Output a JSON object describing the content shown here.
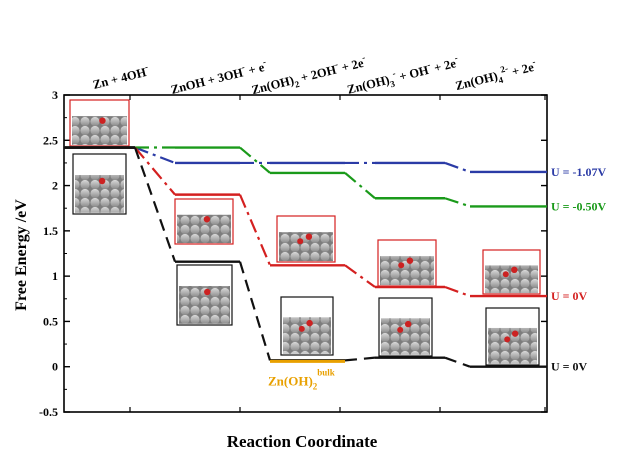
{
  "chart_data": {
    "type": "line",
    "title": "",
    "xlabel": "Reaction Coordinate",
    "ylabel": "Free Energy /eV",
    "ylim": [
      -0.5,
      3
    ],
    "yticks": [
      "-0.5",
      "0",
      "0.5",
      "1",
      "1.5",
      "2",
      "2.5",
      "3"
    ],
    "ytick_values": [
      -0.5,
      0,
      0.5,
      1,
      1.5,
      2,
      2.5,
      3
    ],
    "grid": false,
    "x_states": [
      {
        "base": "Zn + 4OH",
        "sup": "-",
        "sub": ""
      },
      {
        "base": "ZnOH + 3OH",
        "sup": "-",
        "sub": "",
        "tail": " + e",
        "tail_sup": "-"
      },
      {
        "base": "Zn(OH)",
        "sub": "2",
        "mid": " + 2OH",
        "mid_sup": "-",
        "tail": " + 2e",
        "tail_sup": "-"
      },
      {
        "base": "Zn(OH)",
        "sub": "3",
        "sup": "-",
        "mid": " + OH",
        "mid_sup": "-",
        "tail": " + 2e",
        "tail_sup": "-"
      },
      {
        "base": "Zn(OH)",
        "sub": "4",
        "sup": "2-",
        "tail": " + 2e",
        "tail_sup": "-"
      }
    ],
    "series": [
      {
        "name": "U = -1.07V",
        "color": "#2b3ba6",
        "dash": "dashdot",
        "values": [
          2.42,
          2.25,
          2.25,
          2.25,
          2.15
        ]
      },
      {
        "name": "U = -0.50V",
        "color": "#1a9a1a",
        "dash": "dashdot",
        "values": [
          2.42,
          2.42,
          2.14,
          1.86,
          1.77
        ]
      },
      {
        "name": "U = 0V",
        "color": "#d42020",
        "dash": "dashdot",
        "values": [
          2.42,
          1.9,
          1.12,
          0.88,
          0.78
        ]
      },
      {
        "name": "U = 0V",
        "color": "#111111",
        "dash": "dash",
        "values": [
          2.42,
          1.16,
          0.07,
          0.1,
          0.0
        ]
      }
    ],
    "annotation": {
      "text": "Zn(OH)",
      "sub": "2",
      "sup": "bulk",
      "color": "#e8a000",
      "value": 0.07
    }
  }
}
